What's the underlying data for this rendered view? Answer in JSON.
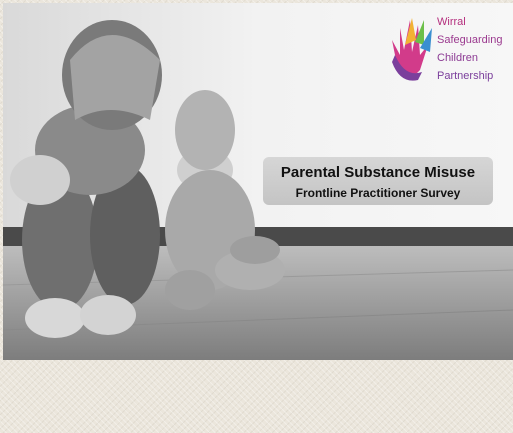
{
  "logo": {
    "lines": [
      "Wirral",
      "Safeguarding",
      "Children",
      "Partnership"
    ]
  },
  "banner": {
    "title": "Parental Substance Misuse",
    "subtitle": "Frontline Practitioner Survey"
  }
}
